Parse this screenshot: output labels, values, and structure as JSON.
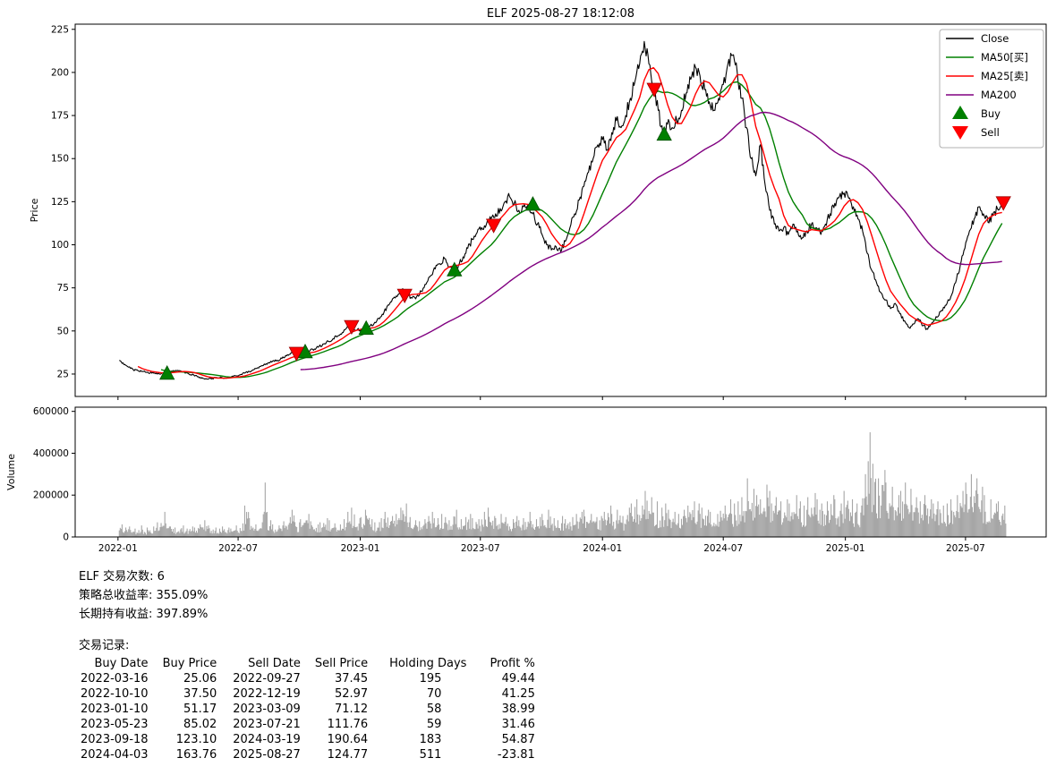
{
  "title": "ELF 2025-08-27 18:12:08",
  "chart_data": {
    "type": "line",
    "title": "ELF 2025-08-27 18:12:08",
    "ylabel_price": "Price",
    "ylabel_volume": "Volume",
    "start_date": "2022-01-03",
    "interval_days": 7,
    "price_range": [
      12,
      228
    ],
    "price_ticks": [
      25,
      50,
      75,
      100,
      125,
      150,
      175,
      200,
      225
    ],
    "x_ticks": [
      {
        "label": "2022-01",
        "date": "2022-01-01"
      },
      {
        "label": "2022-07",
        "date": "2022-07-01"
      },
      {
        "label": "2023-01",
        "date": "2023-01-01"
      },
      {
        "label": "2023-07",
        "date": "2023-07-01"
      },
      {
        "label": "2024-01",
        "date": "2024-01-01"
      },
      {
        "label": "2024-07",
        "date": "2024-07-01"
      },
      {
        "label": "2025-01",
        "date": "2025-01-01"
      },
      {
        "label": "2025-07",
        "date": "2025-07-01"
      }
    ],
    "volume_scale": 1000,
    "volume_axis_max": 620,
    "volume_ticks": [
      {
        "v": 0,
        "label": "0"
      },
      {
        "v": 200,
        "label": "200000"
      },
      {
        "v": 400,
        "label": "400000"
      },
      {
        "v": 600,
        "label": "600000"
      }
    ],
    "close": [
      33,
      30.5,
      29,
      27.5,
      27,
      26.5,
      26,
      25.5,
      25.5,
      25.06,
      26,
      26.5,
      27,
      27,
      26,
      25,
      24.5,
      23.5,
      22.5,
      22,
      22.5,
      23,
      23,
      22.5,
      23,
      24,
      24.5,
      25.5,
      26.5,
      27.5,
      28.5,
      30,
      31.5,
      32.5,
      33,
      34,
      35.5,
      37.45,
      36.5,
      36.8,
      37.5,
      38.5,
      39.5,
      41,
      42.5,
      44,
      45.5,
      47,
      49,
      52,
      52.97,
      50.5,
      50.5,
      51.17,
      53,
      55,
      57,
      61,
      65,
      69,
      71.12,
      74.5,
      72,
      69,
      70,
      73,
      77,
      82,
      86,
      89,
      92,
      87,
      85.02,
      88,
      93,
      98,
      103,
      107,
      110,
      111.76,
      115,
      118,
      121,
      125,
      128,
      124,
      120,
      122,
      123.1,
      118,
      112,
      106,
      100,
      97,
      99,
      96,
      102,
      110,
      118,
      126,
      134,
      142,
      150,
      158,
      161,
      155,
      165,
      172,
      168,
      175,
      185,
      195,
      205,
      218,
      205,
      190.64,
      178,
      163.76,
      170,
      168,
      172,
      178,
      188,
      196,
      203,
      198,
      190,
      183,
      178,
      185,
      193,
      205,
      210,
      200,
      185,
      168,
      150,
      140,
      158,
      135,
      120,
      112,
      108,
      110,
      106,
      112,
      108,
      104,
      108,
      112,
      110,
      106,
      112,
      118,
      124,
      128,
      130,
      127,
      122,
      115,
      108,
      95,
      85,
      78,
      72,
      68,
      63,
      66,
      60,
      56,
      52,
      54,
      57,
      53,
      51,
      55,
      58,
      62,
      65,
      70,
      78,
      88,
      98,
      108,
      115,
      122,
      118,
      113,
      117,
      121,
      124.77
    ],
    "volume_k": [
      60,
      45,
      50,
      40,
      55,
      35,
      45,
      50,
      70,
      120,
      65,
      50,
      45,
      55,
      40,
      50,
      45,
      60,
      80,
      55,
      45,
      40,
      50,
      45,
      40,
      55,
      65,
      150,
      90,
      60,
      70,
      260,
      80,
      60,
      55,
      75,
      95,
      130,
      70,
      85,
      110,
      75,
      60,
      70,
      90,
      80,
      65,
      60,
      85,
      120,
      140,
      90,
      95,
      130,
      85,
      70,
      90,
      120,
      100,
      110,
      140,
      160,
      95,
      80,
      75,
      85,
      100,
      120,
      90,
      110,
      95,
      80,
      130,
      85,
      95,
      110,
      90,
      85,
      120,
      140,
      100,
      90,
      110,
      95,
      85,
      100,
      80,
      90,
      120,
      85,
      95,
      110,
      130,
      90,
      80,
      100,
      85,
      95,
      110,
      120,
      130,
      110,
      95,
      100,
      120,
      150,
      110,
      130,
      100,
      140,
      160,
      180,
      150,
      220,
      190,
      170,
      140,
      160,
      130,
      120,
      110,
      130,
      150,
      170,
      160,
      140,
      130,
      120,
      110,
      125,
      150,
      180,
      160,
      170,
      190,
      280,
      230,
      200,
      180,
      250,
      220,
      190,
      170,
      180,
      160,
      200,
      170,
      150,
      190,
      210,
      180,
      160,
      170,
      200,
      180,
      160,
      220,
      180,
      160,
      150,
      300,
      500,
      350,
      280,
      320,
      260,
      240,
      200,
      220,
      260,
      230,
      190,
      170,
      200,
      180,
      160,
      170,
      150,
      160,
      180,
      200,
      220,
      260,
      300,
      280,
      240,
      200,
      180,
      160,
      170,
      150
    ],
    "ma_series": [
      {
        "label": "MA50[买]",
        "key": "ma50-line",
        "window": 10,
        "color": "#008000"
      },
      {
        "label": "MA25[卖]",
        "key": "ma25-line",
        "window": 5,
        "color": "#ff0000"
      },
      {
        "label": "MA200",
        "key": "ma200-line",
        "window": 40,
        "color": "#800080"
      }
    ],
    "buys": [
      {
        "date": "2022-03-16",
        "price": 25.06
      },
      {
        "date": "2022-10-10",
        "price": 37.5
      },
      {
        "date": "2023-01-10",
        "price": 51.17
      },
      {
        "date": "2023-05-23",
        "price": 85.02
      },
      {
        "date": "2023-09-18",
        "price": 123.1
      },
      {
        "date": "2024-04-03",
        "price": 163.76
      }
    ],
    "sells": [
      {
        "date": "2022-09-27",
        "price": 37.45
      },
      {
        "date": "2022-12-19",
        "price": 52.97
      },
      {
        "date": "2023-03-09",
        "price": 71.12
      },
      {
        "date": "2023-07-21",
        "price": 111.76
      },
      {
        "date": "2024-03-19",
        "price": 190.64
      },
      {
        "date": "2025-08-27",
        "price": 124.77
      }
    ],
    "legend": [
      {
        "label": "Close",
        "type": "line",
        "color": "#000000"
      },
      {
        "label": "MA50[买]",
        "type": "line",
        "color": "#008000"
      },
      {
        "label": "MA25[卖]",
        "type": "line",
        "color": "#ff0000"
      },
      {
        "label": "MA200",
        "type": "line",
        "color": "#800080"
      },
      {
        "label": "Buy",
        "type": "triangle-up",
        "color": "#008000"
      },
      {
        "label": "Sell",
        "type": "triangle-down",
        "color": "#ff0000"
      }
    ],
    "colors": {
      "close": "#000000",
      "volume": "#a6a6a6",
      "buy": "#008000",
      "sell": "#ff0000"
    }
  },
  "summary": {
    "lines": [
      "ELF 交易次数: 6",
      "策略总收益率: 355.09%",
      "长期持有收益: 397.89%"
    ],
    "records_title": "交易记录:"
  },
  "table": {
    "headers": [
      "Buy Date",
      "Buy Price",
      "Sell Date",
      "Sell Price",
      "Holding Days",
      "Profit %"
    ],
    "rows": [
      [
        "2022-03-16",
        "25.06",
        "2022-09-27",
        "37.45",
        "195",
        "49.44"
      ],
      [
        "2022-10-10",
        "37.50",
        "2022-12-19",
        "52.97",
        "70",
        "41.25"
      ],
      [
        "2023-01-10",
        "51.17",
        "2023-03-09",
        "71.12",
        "58",
        "38.99"
      ],
      [
        "2023-05-23",
        "85.02",
        "2023-07-21",
        "111.76",
        "59",
        "31.46"
      ],
      [
        "2023-09-18",
        "123.10",
        "2024-03-19",
        "190.64",
        "183",
        "54.87"
      ],
      [
        "2024-04-03",
        "163.76",
        "2025-08-27",
        "124.77",
        "511",
        "-23.81"
      ]
    ]
  }
}
